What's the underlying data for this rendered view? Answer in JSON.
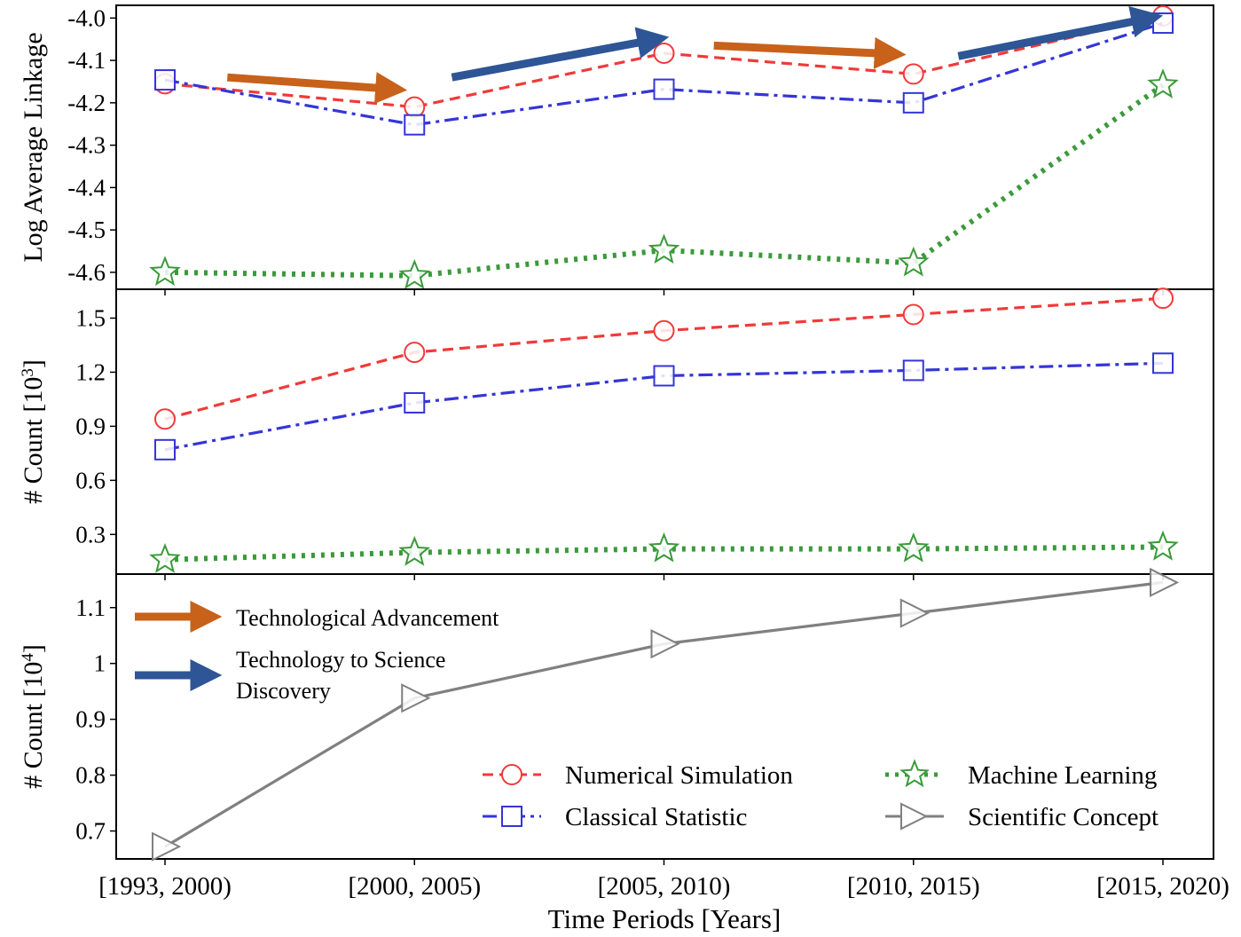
{
  "chart_data": [
    {
      "type": "line",
      "panel": "top",
      "ylabel": "Log Average Linkage",
      "ylim": [
        -4.64,
        -3.97
      ],
      "yticks": [
        -4.0,
        -4.1,
        -4.2,
        -4.3,
        -4.4,
        -4.5,
        -4.6
      ],
      "ytick_labels": [
        "-4.0",
        "-4.1",
        "-4.2",
        "-4.3",
        "-4.4",
        "-4.5",
        "-4.6"
      ],
      "series": [
        {
          "key": "numerical",
          "values": [
            -4.155,
            -4.21,
            -4.083,
            -4.132,
            -3.995
          ]
        },
        {
          "key": "classical",
          "values": [
            -4.146,
            -4.252,
            -4.168,
            -4.2,
            -4.012
          ]
        },
        {
          "key": "ml",
          "values": [
            -4.6,
            -4.608,
            -4.548,
            -4.578,
            -4.158
          ]
        }
      ],
      "annotations": [
        {
          "kind": "technological",
          "from": [
            0.25,
            -4.14
          ],
          "to": [
            0.92,
            -4.168
          ]
        },
        {
          "kind": "discovery",
          "from": [
            1.15,
            -4.14
          ],
          "to": [
            1.97,
            -4.05
          ]
        },
        {
          "kind": "technological",
          "from": [
            2.2,
            -4.065
          ],
          "to": [
            2.92,
            -4.085
          ]
        },
        {
          "kind": "discovery",
          "from": [
            3.18,
            -4.09
          ],
          "to": [
            3.95,
            -4.0
          ]
        }
      ]
    },
    {
      "type": "line",
      "panel": "middle",
      "ylabel": "# Count [10",
      "ylabel_exp": "3",
      "ylim": [
        0.08,
        1.66
      ],
      "yticks": [
        0.3,
        0.6,
        0.9,
        1.2,
        1.5
      ],
      "ytick_labels": [
        "0.3",
        "0.6",
        "0.9",
        "1.2",
        "1.5"
      ],
      "series": [
        {
          "key": "numerical",
          "values": [
            0.94,
            1.31,
            1.43,
            1.52,
            1.61
          ]
        },
        {
          "key": "classical",
          "values": [
            0.77,
            1.03,
            1.18,
            1.21,
            1.25
          ]
        },
        {
          "key": "ml",
          "values": [
            0.16,
            0.2,
            0.22,
            0.22,
            0.23
          ]
        }
      ]
    },
    {
      "type": "line",
      "panel": "bottom",
      "ylabel": "# Count [10",
      "ylabel_exp": "4",
      "ylim": [
        0.65,
        1.16
      ],
      "yticks": [
        0.7,
        0.8,
        0.9,
        1.0,
        1.1
      ],
      "ytick_labels": [
        "0.7",
        "0.8",
        "0.9",
        "1",
        "1.1"
      ],
      "series": [
        {
          "key": "concept",
          "values": [
            0.672,
            0.938,
            1.035,
            1.09,
            1.145
          ]
        }
      ]
    }
  ],
  "xaxis": {
    "label": "Time Periods [Years]",
    "categories": [
      "[1993, 2000)",
      "[2000, 2005)",
      "[2005, 2010)",
      "[2010, 2015)",
      "[2015, 2020)"
    ]
  },
  "series_styles": {
    "numerical": {
      "name": "Numerical Simulation",
      "color": "#f03a3a",
      "marker": "circle",
      "dash": "12,7"
    },
    "classical": {
      "name": "Classical Statistic",
      "color": "#3535d8",
      "marker": "square",
      "dash": "16,6,4,6"
    },
    "ml": {
      "name": "Machine Learning",
      "color": "#3a9a3a",
      "marker": "star",
      "dash": "4,7"
    },
    "concept": {
      "name": "Scientific Concept",
      "color": "#808080",
      "marker": "triangle-right",
      "dash": ""
    }
  },
  "arrow_legend": {
    "technological": {
      "label": "Technological Advancement",
      "color": "#c8611a"
    },
    "discovery": {
      "label_line1": "Technology to Science",
      "label_line2": "Discovery",
      "color": "#2e5596"
    }
  },
  "legend_position": "lower-right"
}
